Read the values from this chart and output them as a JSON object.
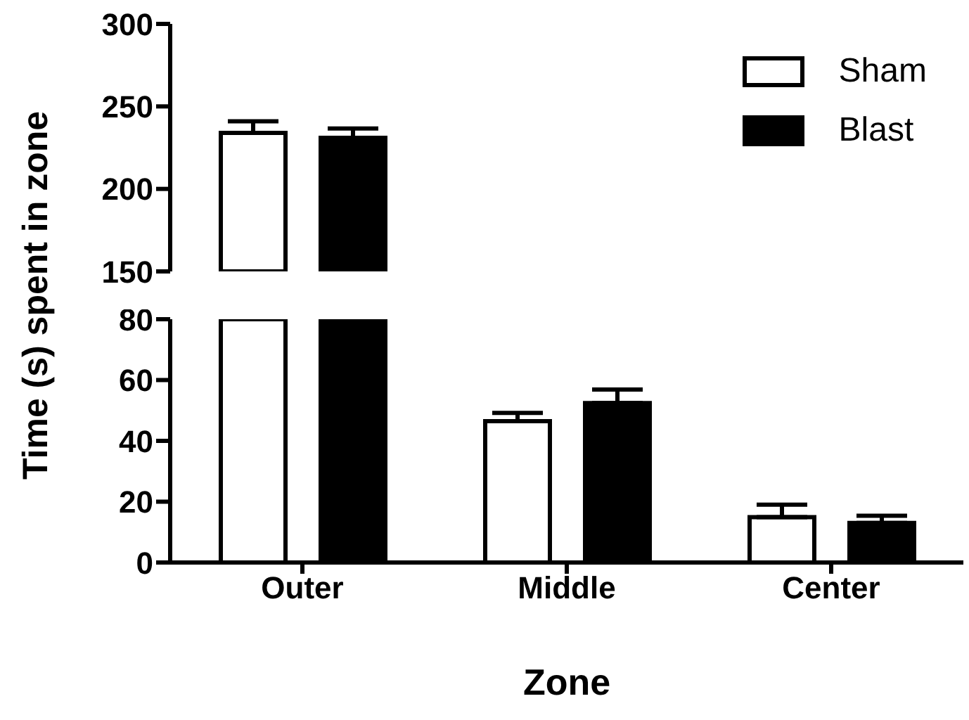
{
  "chart_data": [
    {
      "type": "bar",
      "categories": [
        null
      ],
      "ylabel": "Time (s) spent in zone",
      "ylim": [
        150,
        300
      ],
      "yticks": [
        150,
        200,
        250,
        300
      ],
      "tick_labels": "y",
      "legend": "top right",
      "grid": false,
      "series": [
        {
          "name": "Sham",
          "color": "#ffffff",
          "values": [
            234
          ],
          "errors": [
            [
              234,
              241
            ]
          ]
        },
        {
          "name": "Blast",
          "color": "#000000",
          "values": [
            231
          ],
          "errors": [
            [
              231,
              236.6
            ]
          ]
        }
      ]
    },
    {
      "type": "bar",
      "categories": [
        "Outer",
        "Middle",
        "Center"
      ],
      "xlabel": "Zone",
      "ylim": [
        0,
        80
      ],
      "yticks": [
        0,
        20,
        40,
        60,
        80
      ],
      "grid": false,
      "legend": false,
      "series": [
        {
          "color": "#ffffff",
          "values": [
            80,
            46.5,
            14.9
          ],
          "errors": [
            null,
            [
              46.5,
              49.2
            ],
            [
              14.9,
              19
            ]
          ]
        },
        {
          "color": "#000000",
          "values": [
            80,
            52.4,
            13
          ],
          "errors": [
            null,
            [
              52.4,
              56.9
            ],
            [
              13,
              15.4
            ]
          ]
        }
      ]
    }
  ]
}
